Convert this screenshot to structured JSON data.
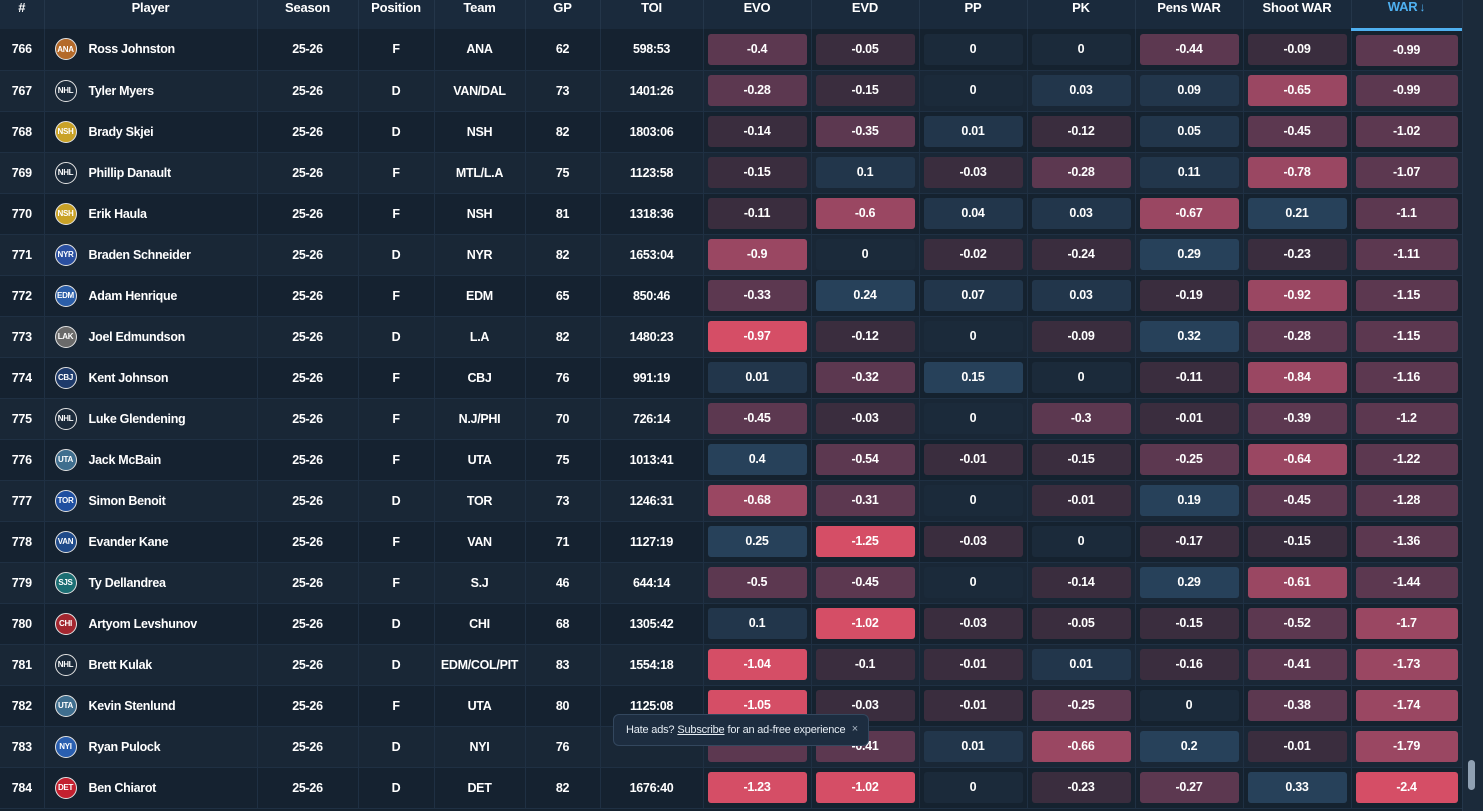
{
  "columns": [
    "#",
    "Player",
    "Season",
    "Position",
    "Team",
    "GP",
    "TOI",
    "EVO",
    "EVD",
    "PP",
    "PK",
    "Pens WAR",
    "Shoot WAR",
    "WAR"
  ],
  "sort_arrow": "↓",
  "colors": {
    "neutral": "#1b2a3a",
    "pos_light": "#22364b",
    "pos_mid": "#27415a",
    "neg_light": "#3a2d3e",
    "neg_mid": "#5c3850",
    "neg_strong": "#9a4762",
    "neg_max": "#d54e66"
  },
  "rows": [
    {
      "rank": "766",
      "logo": "ANA",
      "player": "Ross Johnston",
      "season": "25-26",
      "pos": "F",
      "team": "ANA",
      "gp": "62",
      "toi": "598:53",
      "evo": "-0.4",
      "evd": "-0.05",
      "pp": "0",
      "pk": "0",
      "pens": "-0.44",
      "shoot": "-0.09",
      "war": "-0.99"
    },
    {
      "rank": "767",
      "logo": "NHL",
      "player": "Tyler Myers",
      "season": "25-26",
      "pos": "D",
      "team": "VAN/DAL",
      "gp": "73",
      "toi": "1401:26",
      "evo": "-0.28",
      "evd": "-0.15",
      "pp": "0",
      "pk": "0.03",
      "pens": "0.09",
      "shoot": "-0.65",
      "war": "-0.99"
    },
    {
      "rank": "768",
      "logo": "NSH",
      "player": "Brady Skjei",
      "season": "25-26",
      "pos": "D",
      "team": "NSH",
      "gp": "82",
      "toi": "1803:06",
      "evo": "-0.14",
      "evd": "-0.35",
      "pp": "0.01",
      "pk": "-0.12",
      "pens": "0.05",
      "shoot": "-0.45",
      "war": "-1.02"
    },
    {
      "rank": "769",
      "logo": "NHL",
      "player": "Phillip Danault",
      "season": "25-26",
      "pos": "F",
      "team": "MTL/L.A",
      "gp": "75",
      "toi": "1123:58",
      "evo": "-0.15",
      "evd": "0.1",
      "pp": "-0.03",
      "pk": "-0.28",
      "pens": "0.11",
      "shoot": "-0.78",
      "war": "-1.07"
    },
    {
      "rank": "770",
      "logo": "NSH",
      "player": "Erik Haula",
      "season": "25-26",
      "pos": "F",
      "team": "NSH",
      "gp": "81",
      "toi": "1318:36",
      "evo": "-0.11",
      "evd": "-0.6",
      "pp": "0.04",
      "pk": "0.03",
      "pens": "-0.67",
      "shoot": "0.21",
      "war": "-1.1"
    },
    {
      "rank": "771",
      "logo": "NYR",
      "player": "Braden Schneider",
      "season": "25-26",
      "pos": "D",
      "team": "NYR",
      "gp": "82",
      "toi": "1653:04",
      "evo": "-0.9",
      "evd": "0",
      "pp": "-0.02",
      "pk": "-0.24",
      "pens": "0.29",
      "shoot": "-0.23",
      "war": "-1.11"
    },
    {
      "rank": "772",
      "logo": "EDM",
      "player": "Adam Henrique",
      "season": "25-26",
      "pos": "F",
      "team": "EDM",
      "gp": "65",
      "toi": "850:46",
      "evo": "-0.33",
      "evd": "0.24",
      "pp": "0.07",
      "pk": "0.03",
      "pens": "-0.19",
      "shoot": "-0.92",
      "war": "-1.15"
    },
    {
      "rank": "773",
      "logo": "LAK",
      "player": "Joel Edmundson",
      "season": "25-26",
      "pos": "D",
      "team": "L.A",
      "gp": "82",
      "toi": "1480:23",
      "evo": "-0.97",
      "evd": "-0.12",
      "pp": "0",
      "pk": "-0.09",
      "pens": "0.32",
      "shoot": "-0.28",
      "war": "-1.15"
    },
    {
      "rank": "774",
      "logo": "CBJ",
      "player": "Kent Johnson",
      "season": "25-26",
      "pos": "F",
      "team": "CBJ",
      "gp": "76",
      "toi": "991:19",
      "evo": "0.01",
      "evd": "-0.32",
      "pp": "0.15",
      "pk": "0",
      "pens": "-0.11",
      "shoot": "-0.84",
      "war": "-1.16"
    },
    {
      "rank": "775",
      "logo": "NHL",
      "player": "Luke Glendening",
      "season": "25-26",
      "pos": "F",
      "team": "N.J/PHI",
      "gp": "70",
      "toi": "726:14",
      "evo": "-0.45",
      "evd": "-0.03",
      "pp": "0",
      "pk": "-0.3",
      "pens": "-0.01",
      "shoot": "-0.39",
      "war": "-1.2"
    },
    {
      "rank": "776",
      "logo": "UTA",
      "player": "Jack McBain",
      "season": "25-26",
      "pos": "F",
      "team": "UTA",
      "gp": "75",
      "toi": "1013:41",
      "evo": "0.4",
      "evd": "-0.54",
      "pp": "-0.01",
      "pk": "-0.15",
      "pens": "-0.25",
      "shoot": "-0.64",
      "war": "-1.22"
    },
    {
      "rank": "777",
      "logo": "TOR",
      "player": "Simon Benoit",
      "season": "25-26",
      "pos": "D",
      "team": "TOR",
      "gp": "73",
      "toi": "1246:31",
      "evo": "-0.68",
      "evd": "-0.31",
      "pp": "0",
      "pk": "-0.01",
      "pens": "0.19",
      "shoot": "-0.45",
      "war": "-1.28"
    },
    {
      "rank": "778",
      "logo": "VAN",
      "player": "Evander Kane",
      "season": "25-26",
      "pos": "F",
      "team": "VAN",
      "gp": "71",
      "toi": "1127:19",
      "evo": "0.25",
      "evd": "-1.25",
      "pp": "-0.03",
      "pk": "0",
      "pens": "-0.17",
      "shoot": "-0.15",
      "war": "-1.36"
    },
    {
      "rank": "779",
      "logo": "SJS",
      "player": "Ty Dellandrea",
      "season": "25-26",
      "pos": "F",
      "team": "S.J",
      "gp": "46",
      "toi": "644:14",
      "evo": "-0.5",
      "evd": "-0.45",
      "pp": "0",
      "pk": "-0.14",
      "pens": "0.29",
      "shoot": "-0.61",
      "war": "-1.44"
    },
    {
      "rank": "780",
      "logo": "CHI",
      "player": "Artyom Levshunov",
      "season": "25-26",
      "pos": "D",
      "team": "CHI",
      "gp": "68",
      "toi": "1305:42",
      "evo": "0.1",
      "evd": "-1.02",
      "pp": "-0.03",
      "pk": "-0.05",
      "pens": "-0.15",
      "shoot": "-0.52",
      "war": "-1.7"
    },
    {
      "rank": "781",
      "logo": "NHL",
      "player": "Brett Kulak",
      "season": "25-26",
      "pos": "D",
      "team": "EDM/COL/PIT",
      "gp": "83",
      "toi": "1554:18",
      "evo": "-1.04",
      "evd": "-0.1",
      "pp": "-0.01",
      "pk": "0.01",
      "pens": "-0.16",
      "shoot": "-0.41",
      "war": "-1.73"
    },
    {
      "rank": "782",
      "logo": "UTA",
      "player": "Kevin Stenlund",
      "season": "25-26",
      "pos": "F",
      "team": "UTA",
      "gp": "80",
      "toi": "1125:08",
      "evo": "-1.05",
      "evd": "-0.03",
      "pp": "-0.01",
      "pk": "-0.25",
      "pens": "0",
      "shoot": "-0.38",
      "war": "-1.74"
    },
    {
      "rank": "783",
      "logo": "NYI",
      "player": "Ryan Pulock",
      "season": "25-26",
      "pos": "D",
      "team": "NYI",
      "gp": "76",
      "toi": "",
      "evo": "",
      "evd": "-0.41",
      "pp": "0.01",
      "pk": "-0.66",
      "pens": "0.2",
      "shoot": "-0.01",
      "war": "-1.79"
    },
    {
      "rank": "784",
      "logo": "DET",
      "player": "Ben Chiarot",
      "season": "25-26",
      "pos": "D",
      "team": "DET",
      "gp": "82",
      "toi": "1676:40",
      "evo": "-1.23",
      "evd": "-1.02",
      "pp": "0",
      "pk": "-0.23",
      "pens": "-0.27",
      "shoot": "0.33",
      "war": "-2.4"
    }
  ],
  "logo_colors": {
    "ANA": "#b46a2a",
    "NHL": "#1b2a3a",
    "NSH": "#c9a227",
    "NYR": "#2a4fa0",
    "EDM": "#2b5ea8",
    "LAK": "#6a6a6a",
    "CBJ": "#1e3a6a",
    "UTA": "#3f6e8e",
    "TOR": "#1f4fa0",
    "VAN": "#1f4a8a",
    "SJS": "#1b6e73",
    "CHI": "#a3262f",
    "NYI": "#2a5fb0",
    "DET": "#c3202f"
  },
  "ad_toast": {
    "prefix": "Hate ads?",
    "link": "Subscribe",
    "suffix": "for an ad-free experience",
    "close": "×"
  }
}
